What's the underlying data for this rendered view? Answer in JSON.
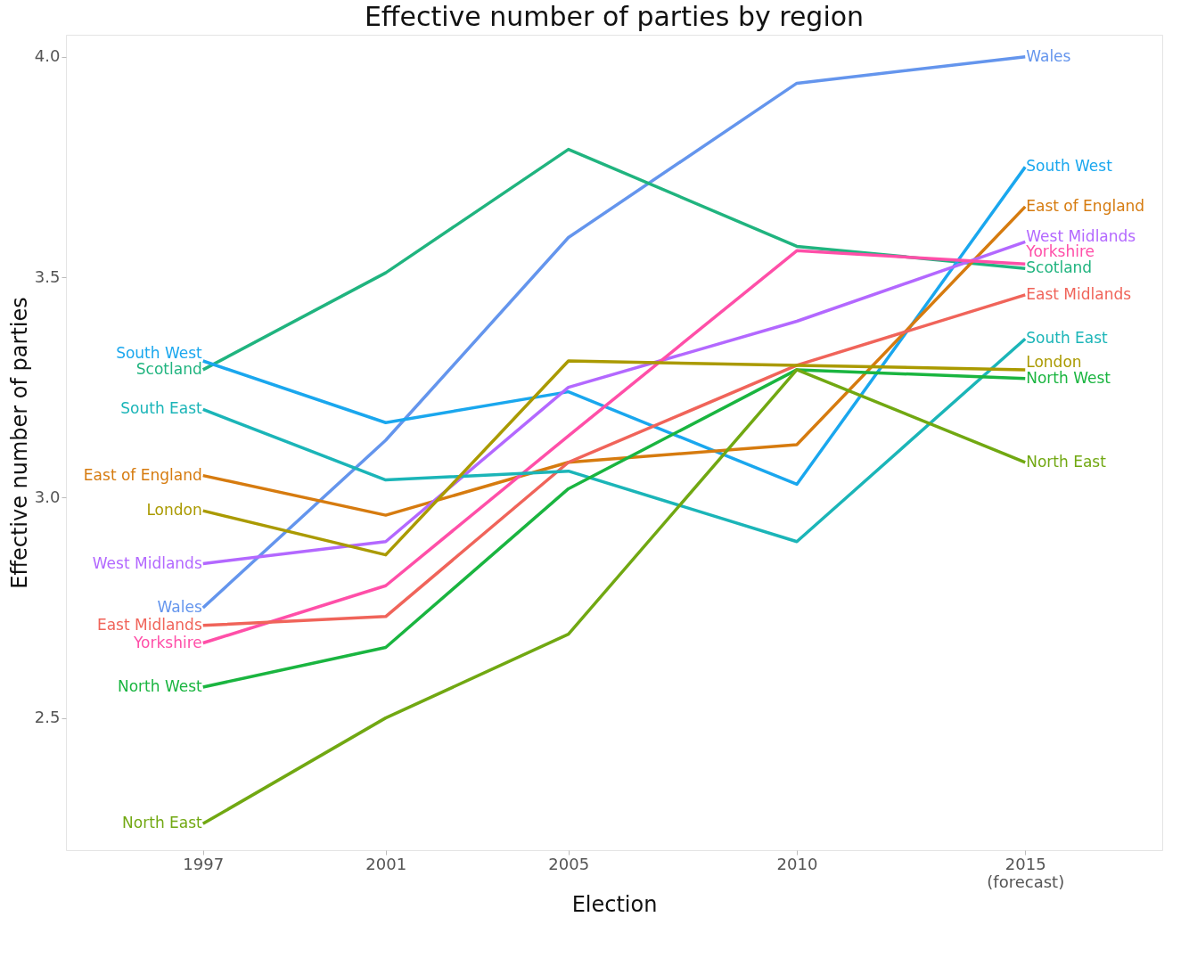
{
  "chart_data": {
    "type": "line",
    "title": "Effective number of parties by region",
    "xlabel": "Election",
    "ylabel": "Effective number of parties",
    "x": [
      1997,
      2001,
      2005,
      2010,
      2015
    ],
    "xlim": [
      1994,
      2018
    ],
    "xticks": [
      1997,
      2001,
      2005,
      2010,
      {
        "value": 2015,
        "label": "2015\n(forecast)"
      }
    ],
    "ylim": [
      2.2,
      4.05
    ],
    "yticks": [
      2.5,
      {
        "value": 3,
        "label": "3.0"
      },
      3.5,
      {
        "value": 4,
        "label": "4.0"
      }
    ],
    "grid": false,
    "legend": false,
    "line_style": "solid",
    "marker": "none",
    "series": [
      {
        "name": "Wales",
        "color": "#6495ed",
        "values": [
          2.75,
          3.13,
          3.59,
          3.94,
          4.0
        ]
      },
      {
        "name": "Scotland",
        "color": "#20b47f",
        "values": [
          3.29,
          3.51,
          3.79,
          3.57,
          3.52
        ]
      },
      {
        "name": "South West",
        "color": "#1aa7ee",
        "values": [
          3.31,
          3.17,
          3.24,
          3.03,
          3.75
        ]
      },
      {
        "name": "East of England",
        "color": "#d67b0f",
        "values": [
          3.05,
          2.96,
          3.08,
          3.12,
          3.66
        ]
      },
      {
        "name": "West Midlands",
        "color": "#b368ff",
        "values": [
          2.85,
          2.9,
          3.25,
          3.4,
          3.58
        ]
      },
      {
        "name": "Yorkshire",
        "color": "#ff4fa8",
        "values": [
          2.67,
          2.8,
          3.14,
          3.56,
          3.53
        ]
      },
      {
        "name": "East Midlands",
        "color": "#f0645a",
        "values": [
          2.71,
          2.73,
          3.08,
          3.3,
          3.46
        ]
      },
      {
        "name": "South East",
        "color": "#1bb5b8",
        "values": [
          3.2,
          3.04,
          3.06,
          2.9,
          3.36
        ]
      },
      {
        "name": "London",
        "color": "#aa9a00",
        "values": [
          2.97,
          2.87,
          3.31,
          3.3,
          3.29
        ]
      },
      {
        "name": "North West",
        "color": "#1ab540",
        "values": [
          2.57,
          2.66,
          3.02,
          3.29,
          3.27
        ]
      },
      {
        "name": "North East",
        "color": "#71a812",
        "values": [
          2.26,
          2.5,
          2.69,
          3.29,
          3.08
        ]
      }
    ]
  }
}
